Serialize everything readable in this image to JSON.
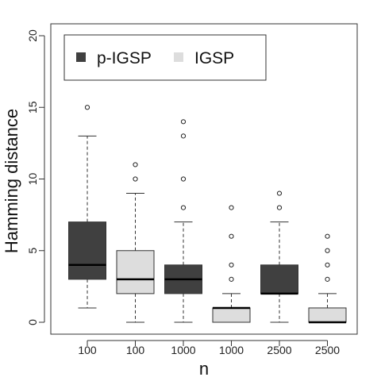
{
  "chart_data": {
    "type": "box",
    "xlabel": "n",
    "ylabel": "Hamming distance",
    "ylim": [
      -1,
      20.5
    ],
    "yticks": [
      0,
      5,
      10,
      15,
      20
    ],
    "legend": {
      "placement": "top-left",
      "entries": [
        {
          "name": "p-IGSP",
          "color": "#404040"
        },
        {
          "name": "IGSP",
          "color": "#dddddd"
        }
      ]
    },
    "boxes": [
      {
        "label": "100",
        "series": "p-IGSP",
        "whisker_low": 1,
        "q1": 3,
        "median": 4,
        "q3": 7,
        "whisker_high": 13,
        "outliers": [
          15
        ]
      },
      {
        "label": "100",
        "series": "IGSP",
        "whisker_low": 0,
        "q1": 2,
        "median": 3,
        "q3": 5,
        "whisker_high": 9,
        "outliers": [
          10,
          11
        ]
      },
      {
        "label": "1000",
        "series": "p-IGSP",
        "whisker_low": 0,
        "q1": 2,
        "median": 3,
        "q3": 4,
        "whisker_high": 7,
        "outliers": [
          8,
          10,
          13,
          14
        ]
      },
      {
        "label": "1000",
        "series": "IGSP",
        "whisker_low": 0,
        "q1": 0,
        "median": 1,
        "q3": 1,
        "whisker_high": 2,
        "outliers": [
          3,
          4,
          6,
          8
        ]
      },
      {
        "label": "2500",
        "series": "p-IGSP",
        "whisker_low": 0,
        "q1": 2,
        "median": 2,
        "q3": 4,
        "whisker_high": 7,
        "outliers": [
          8,
          9
        ]
      },
      {
        "label": "2500",
        "series": "IGSP",
        "whisker_low": 0,
        "q1": 0,
        "median": 0,
        "q3": 1,
        "whisker_high": 2,
        "outliers": [
          3,
          4,
          5,
          6
        ]
      }
    ]
  }
}
